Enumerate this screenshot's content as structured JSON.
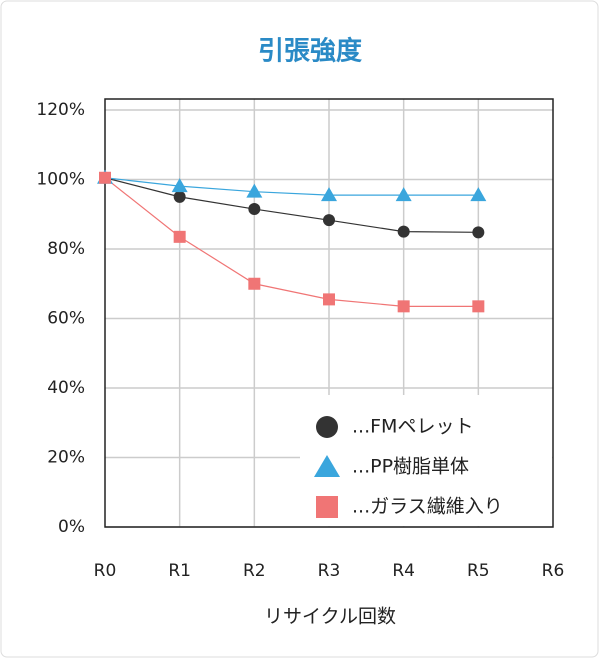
{
  "chart_data": {
    "type": "line",
    "title": "引張強度",
    "x_label": "リサイクル回数",
    "categories": [
      "R0",
      "R1",
      "R2",
      "R3",
      "R4",
      "R5",
      "R6"
    ],
    "series": [
      {
        "name": "...FMペレット",
        "color": "#333333",
        "marker": "circle",
        "values": [
          100.5,
          95,
          91.5,
          88.3,
          85,
          84.8,
          null
        ]
      },
      {
        "name": "...PP樹脂単体",
        "color": "#3aa6dd",
        "marker": "triangle",
        "values": [
          100.5,
          98.1,
          96.5,
          95.5,
          95.5,
          95.5,
          null
        ]
      },
      {
        "name": "...ガラス繊維入り",
        "color": "#f07575",
        "marker": "square",
        "values": [
          100.5,
          83.5,
          70,
          65.5,
          63.5,
          63.5,
          null
        ]
      }
    ],
    "ylim": [
      0,
      120
    ],
    "yticks": [
      {
        "value": 0,
        "label": "0%"
      },
      {
        "value": 20,
        "label": "20%"
      },
      {
        "value": 40,
        "label": "40%"
      },
      {
        "value": 60,
        "label": "60%"
      },
      {
        "value": 80,
        "label": "80%"
      },
      {
        "value": 100,
        "label": "100%"
      },
      {
        "value": 120,
        "label": "120%"
      }
    ],
    "grid": true,
    "legend": "lower right"
  }
}
